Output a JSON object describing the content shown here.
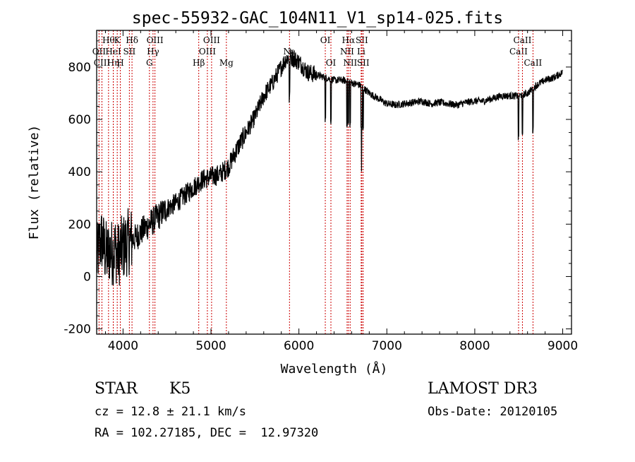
{
  "chart_data": {
    "type": "line",
    "title": "spec-55932-GAC_104N11_V1_sp14-025.fits",
    "xlabel": "Wavelength (Å)",
    "ylabel": "Flux (relative)",
    "xlim": [
      3700,
      9100
    ],
    "ylim": [
      -220,
      940
    ],
    "xticks": [
      4000,
      5000,
      6000,
      7000,
      8000,
      9000
    ],
    "yticks": [
      -200,
      0,
      200,
      400,
      600,
      800
    ],
    "grid": false,
    "line_color": "#000000",
    "marker_color": "#cc0000",
    "series": [
      {
        "x": [
          3700,
          3730,
          3760,
          3790,
          3820,
          3850,
          3880,
          3910,
          3940,
          3970,
          4000,
          4050,
          4100,
          4150,
          4200,
          4300,
          4400,
          4500,
          4600,
          4700,
          4800,
          4900,
          5000,
          5100,
          5200,
          5300,
          5400,
          5500,
          5600,
          5700,
          5750,
          5800,
          5850,
          5900,
          5950,
          6000,
          6100,
          6200,
          6300,
          6400,
          6500,
          6600,
          6700,
          6800,
          6900,
          7000,
          7100,
          7200,
          7300,
          7400,
          7500,
          7600,
          7700,
          7800,
          7900,
          8000,
          8100,
          8200,
          8300,
          8400,
          8500,
          8600,
          8700,
          8800,
          8900,
          9000
        ],
        "y": [
          60,
          120,
          140,
          100,
          80,
          100,
          90,
          110,
          80,
          100,
          110,
          130,
          140,
          150,
          170,
          200,
          230,
          260,
          280,
          310,
          340,
          370,
          380,
          390,
          420,
          490,
          550,
          610,
          690,
          740,
          770,
          800,
          830,
          840,
          830,
          820,
          780,
          770,
          760,
          750,
          750,
          740,
          730,
          700,
          680,
          660,
          655,
          660,
          665,
          670,
          660,
          665,
          660,
          655,
          665,
          670,
          670,
          680,
          690,
          690,
          690,
          700,
          730,
          750,
          760,
          780
        ]
      }
    ],
    "spectral_lines": [
      {
        "x": 3727,
        "label": "OII",
        "row": 2
      },
      {
        "x": 3760,
        "label": "CIII",
        "row": 3
      },
      {
        "x": 3835,
        "label": "Hθ",
        "row": 1
      },
      {
        "x": 3889,
        "label": "Hη",
        "row": 3
      },
      {
        "x": 3889,
        "label": "HeI",
        "row": 2
      },
      {
        "x": 3934,
        "label": "K",
        "row": 1
      },
      {
        "x": 3969,
        "label": "H",
        "row": 3
      },
      {
        "x": 4072,
        "label": "SII",
        "row": 2
      },
      {
        "x": 4102,
        "label": "Hδ",
        "row": 1
      },
      {
        "x": 4300,
        "label": "G",
        "row": 3
      },
      {
        "x": 4341,
        "label": "Hγ",
        "row": 2
      },
      {
        "x": 4363,
        "label": "OIII",
        "row": 1
      },
      {
        "x": 4861,
        "label": "Hβ",
        "row": 3
      },
      {
        "x": 4959,
        "label": "OIII",
        "row": 2
      },
      {
        "x": 5007,
        "label": "OIII",
        "row": 1
      },
      {
        "x": 5175,
        "label": "Mg",
        "row": 3
      },
      {
        "x": 5893,
        "label": "Na",
        "row": 2
      },
      {
        "x": 6300,
        "label": "OI",
        "row": 1
      },
      {
        "x": 6364,
        "label": "OI",
        "row": 3
      },
      {
        "x": 6548,
        "label": "NII",
        "row": 2
      },
      {
        "x": 6563,
        "label": "Hα",
        "row": 1
      },
      {
        "x": 6583,
        "label": "NII",
        "row": 3
      },
      {
        "x": 6708,
        "label": "Li",
        "row": 2
      },
      {
        "x": 6716,
        "label": "SII",
        "row": 1
      },
      {
        "x": 6731,
        "label": "SII",
        "row": 3
      },
      {
        "x": 8498,
        "label": "CaII",
        "row": 2
      },
      {
        "x": 8542,
        "label": "CaII",
        "row": 1
      },
      {
        "x": 8662,
        "label": "CaII",
        "row": 3
      }
    ]
  },
  "info": {
    "class_label": "STAR",
    "subclass_label": "K5",
    "survey": "LAMOST DR3",
    "cz": "cz = 12.8 ± 21.1 km/s",
    "obs_date": "Obs-Date: 20120105",
    "coords": "RA = 102.27185, DEC =  12.97320"
  }
}
